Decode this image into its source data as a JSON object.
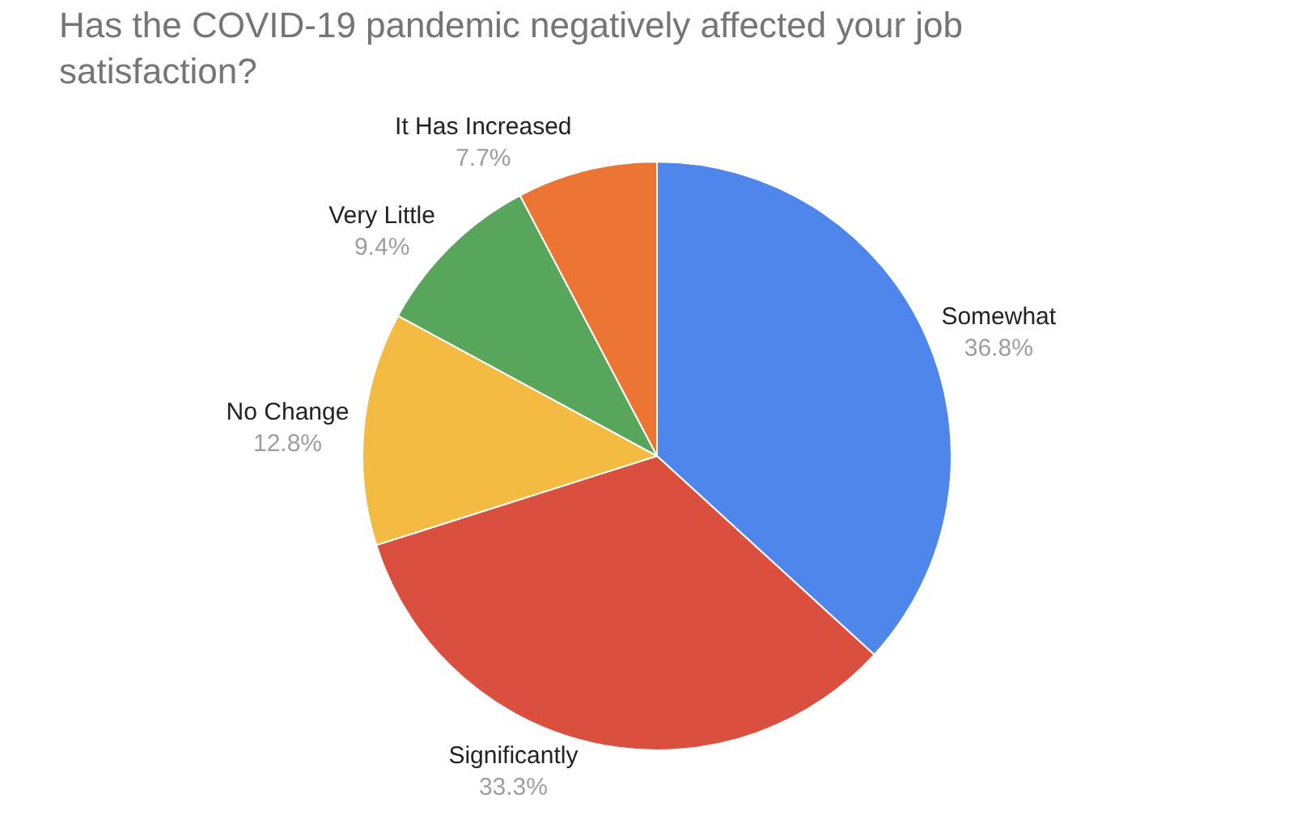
{
  "chart_data": {
    "type": "pie",
    "title": "Has the COVID-19 pandemic negatively affected your job satisfaction?",
    "categories": [
      "Somewhat",
      "Significantly",
      "No Change",
      "Very Little",
      "It Has Increased"
    ],
    "values": [
      36.8,
      33.3,
      12.8,
      9.4,
      7.7
    ],
    "value_labels": [
      "36.8%",
      "33.3%",
      "12.8%",
      "9.4%",
      "7.7%"
    ],
    "colors": [
      "#4f86ec",
      "#db4f3f",
      "#f3bb41",
      "#58a65c",
      "#ec7533"
    ],
    "legend": false
  }
}
